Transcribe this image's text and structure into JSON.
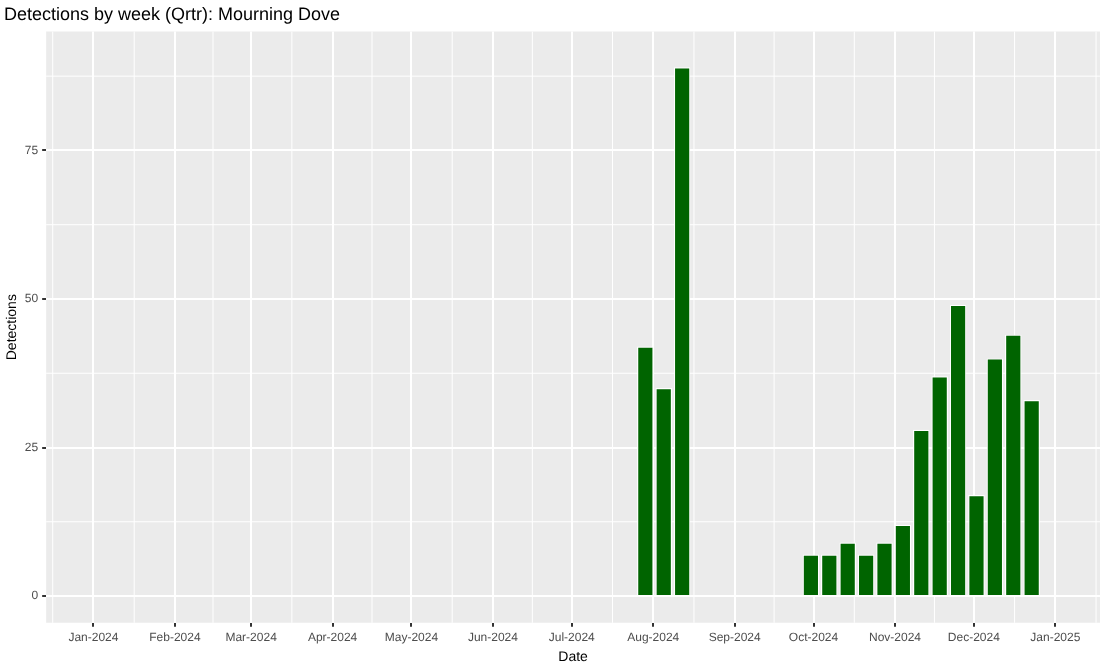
{
  "chart_data": {
    "type": "bar",
    "title": "Detections by week (Qrtr): Mourning Dove",
    "xlabel": "Date",
    "ylabel": "Detections",
    "x": [
      "2024-07-29",
      "2024-08-05",
      "2024-08-12",
      "2024-09-30",
      "2024-10-07",
      "2024-10-14",
      "2024-10-21",
      "2024-10-28",
      "2024-11-04",
      "2024-11-11",
      "2024-11-18",
      "2024-11-25",
      "2024-12-02",
      "2024-12-09",
      "2024-12-16",
      "2024-12-23"
    ],
    "values": [
      42,
      35,
      89,
      7,
      7,
      9,
      7,
      9,
      12,
      28,
      37,
      49,
      17,
      40,
      44,
      33
    ],
    "color": "#006400",
    "xlim": [
      "2023-12-14",
      "2025-01-18"
    ],
    "xticks": [
      {
        "value": "2024-01-01",
        "label": "Jan-2024"
      },
      {
        "value": "2024-02-01",
        "label": "Feb-2024"
      },
      {
        "value": "2024-03-01",
        "label": "Mar-2024"
      },
      {
        "value": "2024-04-01",
        "label": "Apr-2024"
      },
      {
        "value": "2024-05-01",
        "label": "May-2024"
      },
      {
        "value": "2024-06-01",
        "label": "Jun-2024"
      },
      {
        "value": "2024-07-01",
        "label": "Jul-2024"
      },
      {
        "value": "2024-08-01",
        "label": "Aug-2024"
      },
      {
        "value": "2024-09-01",
        "label": "Sep-2024"
      },
      {
        "value": "2024-10-01",
        "label": "Oct-2024"
      },
      {
        "value": "2024-11-01",
        "label": "Nov-2024"
      },
      {
        "value": "2024-12-01",
        "label": "Dec-2024"
      },
      {
        "value": "2025-01-01",
        "label": "Jan-2025"
      }
    ],
    "ylim": [
      -4.5,
      95
    ],
    "yticks": [
      0,
      25,
      50,
      75
    ],
    "grid": true,
    "legend": false
  }
}
